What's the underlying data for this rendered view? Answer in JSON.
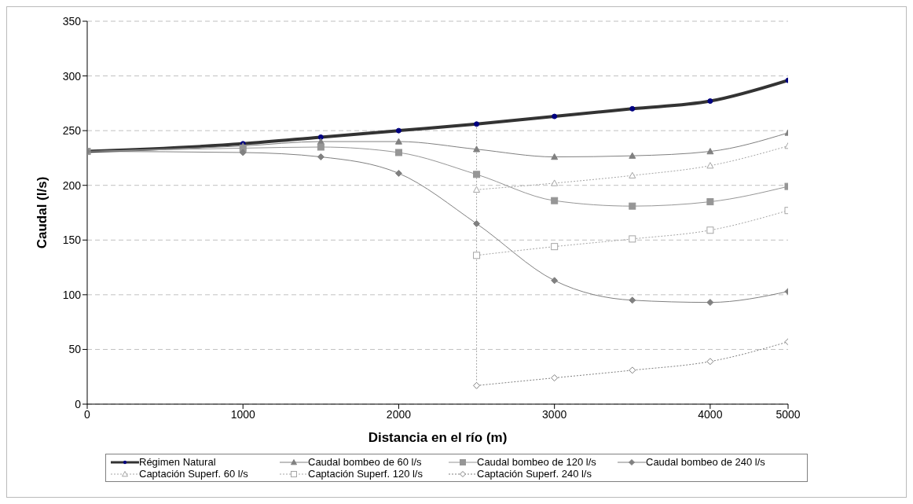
{
  "chart_data": {
    "type": "line",
    "xlabel": "Distancia en el río (m)",
    "ylabel": "Caudal (l/s)",
    "categories": [
      "0",
      null,
      "1000",
      null,
      "2000",
      null,
      "3000",
      null,
      "4000",
      "5000"
    ],
    "ylim": [
      0,
      350
    ],
    "yticks": [
      0,
      50,
      100,
      150,
      200,
      250,
      300,
      350
    ],
    "grid": "y",
    "legend": "bottom",
    "series": [
      {
        "name": "Régimen Natural",
        "color": "#333333",
        "marker": "circle",
        "line_style": "solid",
        "values": [
          231,
          null,
          238,
          244,
          250,
          256,
          263,
          270,
          277,
          296
        ]
      },
      {
        "name": "Caudal bombeo de 60 l/s",
        "color": "#808080",
        "marker": "triangle",
        "line_style": "solid",
        "values": [
          231,
          null,
          236,
          240,
          240,
          233,
          226,
          227,
          231,
          248
        ]
      },
      {
        "name": "Caudal bombeo de 120 l/s",
        "color": "#969696",
        "marker": "square",
        "line_style": "solid",
        "values": [
          231,
          null,
          234,
          235,
          230,
          210,
          186,
          181,
          185,
          199
        ]
      },
      {
        "name": "Caudal bombeo de 240 l/s",
        "color": "#808080",
        "marker": "diamond",
        "line_style": "solid",
        "values": [
          231,
          null,
          230,
          226,
          211,
          165,
          113,
          95,
          93,
          103
        ]
      },
      {
        "name": "Captación Superf. 60 l/s",
        "color": "#a6a6a6",
        "marker": "triangle",
        "line_style": "dotted",
        "values": [
          null,
          null,
          null,
          null,
          null,
          196,
          202,
          209,
          218,
          236
        ]
      },
      {
        "name": "Captación Superf. 120 l/s",
        "color": "#a6a6a6",
        "marker": "square",
        "line_style": "dotted",
        "values": [
          null,
          null,
          null,
          null,
          null,
          136,
          144,
          151,
          159,
          177
        ]
      },
      {
        "name": "Captación Superf. 240 l/s",
        "color": "#808080",
        "marker": "diamond",
        "line_style": "dotted",
        "values": [
          null,
          null,
          null,
          null,
          null,
          17,
          24,
          31,
          39,
          57
        ]
      }
    ]
  }
}
